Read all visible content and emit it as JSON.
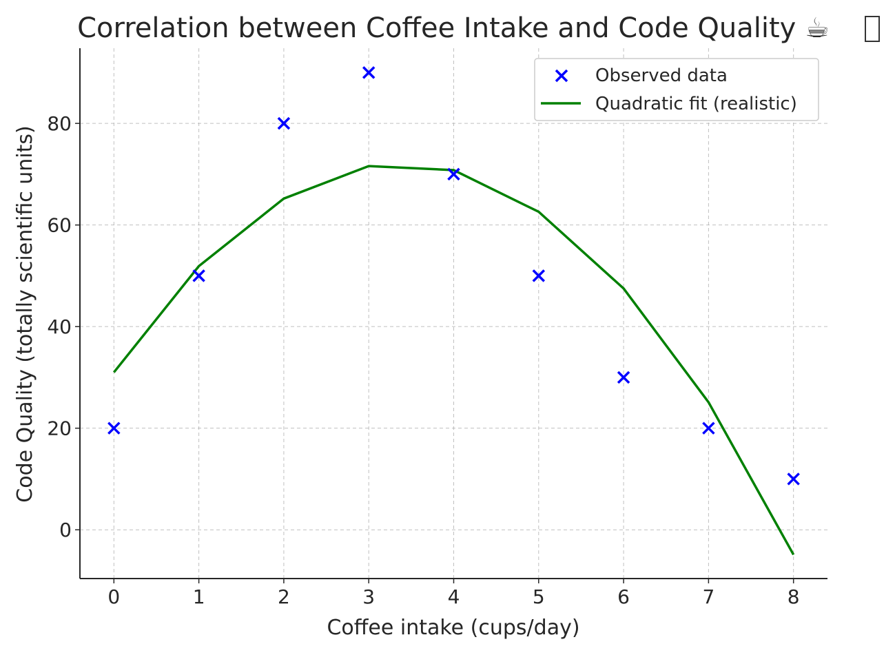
{
  "chart_data": {
    "type": "scatter",
    "title": "Correlation between Coffee Intake and Code Quality ☕",
    "xlabel": "Coffee intake (cups/day)",
    "ylabel": "Code Quality (totally scientific units)",
    "xlim": [
      -0.4,
      8.4
    ],
    "ylim": [
      -9.6,
      94.8
    ],
    "xticks": [
      0,
      1,
      2,
      3,
      4,
      5,
      6,
      7,
      8
    ],
    "yticks": [
      0,
      20,
      40,
      60,
      80
    ],
    "grid": true,
    "legend_position": "top-right",
    "series": [
      {
        "name": "Observed data",
        "kind": "scatter",
        "marker": "x",
        "color": "#0000ff",
        "x": [
          0,
          1,
          2,
          3,
          4,
          5,
          6,
          7,
          8
        ],
        "y": [
          20,
          50,
          80,
          90,
          70,
          50,
          30,
          20,
          10
        ]
      },
      {
        "name": "Quadratic fit (realistic)",
        "kind": "line",
        "color": "#008000",
        "x": [
          0,
          1,
          2,
          3,
          4,
          5,
          6,
          7,
          8
        ],
        "y": [
          31.0,
          51.9,
          65.2,
          71.6,
          70.8,
          62.6,
          47.5,
          25.1,
          -4.9
        ]
      }
    ]
  }
}
